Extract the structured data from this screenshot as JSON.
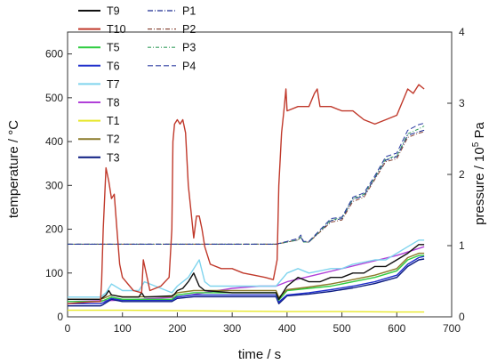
{
  "chart_data": {
    "type": "line",
    "xlabel": "time / s",
    "ylabel_left": "temperature / °C",
    "ylabel_right": "pressure / 10^5 Pa",
    "ylabel_right_base": "pressure / 10",
    "ylabel_right_exp": "5",
    "ylabel_right_unit": " Pa",
    "xlim": [
      0,
      700
    ],
    "ylim_left": [
      0,
      650
    ],
    "ylim_right": [
      0,
      4
    ],
    "x_ticks": [
      0,
      100,
      200,
      300,
      400,
      500,
      600,
      700
    ],
    "y_left_ticks": [
      0,
      100,
      200,
      300,
      400,
      500,
      600
    ],
    "y_right_ticks": [
      0,
      1,
      2,
      3,
      4
    ],
    "grid": false,
    "legend_left": [
      "T9",
      "T10",
      "T5",
      "T6",
      "T7",
      "T8",
      "T1",
      "T2",
      "T3"
    ],
    "legend_right": [
      "P1",
      "P2",
      "P3",
      "P4"
    ],
    "series": [
      {
        "name": "T10",
        "color": "#c0392b",
        "axis": "left",
        "x": [
          0,
          20,
          40,
          60,
          62,
          65,
          70,
          75,
          80,
          85,
          90,
          95,
          100,
          120,
          135,
          138,
          150,
          170,
          185,
          190,
          192,
          195,
          200,
          205,
          210,
          215,
          220,
          225,
          230,
          235,
          240,
          245,
          250,
          260,
          280,
          300,
          320,
          340,
          360,
          375,
          382,
          385,
          390,
          395,
          398,
          400,
          420,
          440,
          450,
          455,
          460,
          480,
          500,
          520,
          540,
          560,
          580,
          600,
          620,
          630,
          640,
          650
        ],
        "y": [
          30,
          32,
          34,
          35,
          80,
          200,
          340,
          310,
          270,
          280,
          200,
          120,
          90,
          60,
          55,
          130,
          60,
          70,
          90,
          200,
          400,
          440,
          450,
          440,
          450,
          420,
          300,
          240,
          180,
          230,
          230,
          200,
          160,
          120,
          110,
          110,
          100,
          95,
          90,
          85,
          130,
          300,
          420,
          480,
          520,
          470,
          480,
          480,
          510,
          520,
          480,
          480,
          470,
          470,
          450,
          440,
          450,
          460,
          520,
          510,
          530,
          520
        ]
      },
      {
        "name": "T9",
        "color": "#111111",
        "axis": "left",
        "x": [
          0,
          60,
          62,
          70,
          75,
          80,
          100,
          130,
          135,
          140,
          190,
          195,
          200,
          210,
          220,
          230,
          240,
          250,
          300,
          380,
          385,
          400,
          420,
          440,
          460,
          480,
          500,
          520,
          540,
          560,
          580,
          600,
          620,
          640,
          650
        ],
        "y": [
          40,
          40,
          42,
          50,
          60,
          50,
          45,
          45,
          55,
          45,
          48,
          52,
          60,
          65,
          80,
          100,
          70,
          60,
          55,
          55,
          40,
          70,
          90,
          80,
          80,
          90,
          90,
          100,
          100,
          115,
          115,
          130,
          145,
          165,
          165
        ]
      },
      {
        "name": "T5",
        "color": "#2ecc40",
        "axis": "left",
        "x": [
          0,
          60,
          65,
          80,
          100,
          140,
          190,
          200,
          230,
          250,
          300,
          380,
          385,
          400,
          440,
          480,
          520,
          560,
          600,
          620,
          640,
          650
        ],
        "y": [
          35,
          35,
          37,
          45,
          40,
          40,
          40,
          50,
          55,
          55,
          55,
          55,
          38,
          60,
          65,
          70,
          80,
          90,
          105,
          130,
          140,
          140
        ]
      },
      {
        "name": "T6",
        "color": "#1f2ecc",
        "axis": "left",
        "x": [
          0,
          60,
          65,
          80,
          100,
          140,
          190,
          200,
          230,
          250,
          300,
          380,
          385,
          400,
          440,
          480,
          520,
          560,
          600,
          620,
          640,
          650
        ],
        "y": [
          30,
          30,
          32,
          42,
          38,
          38,
          38,
          46,
          50,
          50,
          50,
          50,
          34,
          50,
          55,
          62,
          70,
          80,
          95,
          120,
          135,
          138
        ]
      },
      {
        "name": "T7",
        "color": "#7fd4ee",
        "axis": "left",
        "x": [
          0,
          60,
          70,
          80,
          100,
          130,
          140,
          190,
          200,
          220,
          240,
          250,
          260,
          300,
          380,
          400,
          420,
          440,
          460,
          480,
          500,
          520,
          540,
          560,
          580,
          600,
          620,
          640,
          650
        ],
        "y": [
          45,
          45,
          55,
          75,
          60,
          60,
          80,
          55,
          70,
          90,
          130,
          80,
          70,
          70,
          70,
          100,
          110,
          100,
          105,
          110,
          110,
          120,
          125,
          130,
          130,
          145,
          160,
          175,
          175
        ]
      },
      {
        "name": "T8",
        "color": "#b040d8",
        "axis": "left",
        "x": [
          0,
          100,
          200,
          300,
          350,
          380,
          400,
          450,
          500,
          550,
          600,
          650
        ],
        "y": [
          35,
          38,
          45,
          65,
          70,
          70,
          80,
          95,
          110,
          125,
          140,
          160
        ]
      },
      {
        "name": "T1",
        "color": "#e8e82a",
        "axis": "left",
        "x": [
          0,
          100,
          200,
          300,
          400,
          500,
          600,
          650
        ],
        "y": [
          15,
          15,
          14,
          13,
          12,
          12,
          11,
          11
        ]
      },
      {
        "name": "T2",
        "color": "#8b7a2a",
        "axis": "left",
        "x": [
          0,
          60,
          65,
          80,
          100,
          140,
          190,
          200,
          230,
          250,
          300,
          380,
          385,
          400,
          440,
          480,
          520,
          560,
          600,
          620,
          640,
          650
        ],
        "y": [
          40,
          40,
          42,
          50,
          46,
          46,
          46,
          55,
          60,
          60,
          60,
          60,
          44,
          62,
          68,
          75,
          85,
          95,
          110,
          135,
          145,
          145
        ]
      },
      {
        "name": "T3",
        "color": "#0a1a80",
        "axis": "left",
        "x": [
          0,
          60,
          65,
          80,
          100,
          140,
          190,
          200,
          230,
          250,
          300,
          380,
          385,
          400,
          440,
          480,
          520,
          560,
          600,
          620,
          640,
          650
        ],
        "y": [
          25,
          25,
          28,
          40,
          35,
          35,
          35,
          42,
          46,
          46,
          46,
          46,
          30,
          48,
          52,
          58,
          66,
          76,
          90,
          115,
          130,
          132
        ]
      },
      {
        "name": "P1",
        "color": "#1a2a90",
        "axis": "right",
        "x": [
          0,
          200,
          380,
          400,
          420,
          425,
          430,
          440,
          480,
          500,
          520,
          540,
          560,
          580,
          600,
          620,
          640,
          650
        ],
        "y": [
          1.02,
          1.02,
          1.02,
          1.05,
          1.08,
          1.12,
          1.05,
          1.05,
          1.35,
          1.38,
          1.65,
          1.7,
          1.95,
          2.2,
          2.25,
          2.55,
          2.6,
          2.62
        ]
      },
      {
        "name": "P2",
        "color": "#8b4a3a",
        "axis": "right",
        "x": [
          0,
          200,
          380,
          400,
          420,
          425,
          430,
          440,
          480,
          500,
          520,
          540,
          560,
          580,
          600,
          620,
          640,
          650
        ],
        "y": [
          1.02,
          1.02,
          1.02,
          1.05,
          1.08,
          1.12,
          1.05,
          1.05,
          1.33,
          1.36,
          1.62,
          1.68,
          1.93,
          2.18,
          2.22,
          2.52,
          2.58,
          2.6
        ]
      },
      {
        "name": "P3",
        "color": "#3aa060",
        "axis": "right",
        "x": [
          0,
          200,
          380,
          400,
          420,
          425,
          430,
          440,
          480,
          500,
          520,
          540,
          560,
          580,
          600,
          620,
          640,
          650
        ],
        "y": [
          1.02,
          1.02,
          1.02,
          1.05,
          1.08,
          1.12,
          1.05,
          1.05,
          1.36,
          1.39,
          1.66,
          1.72,
          1.96,
          2.22,
          2.26,
          2.57,
          2.64,
          2.68
        ]
      },
      {
        "name": "P4",
        "color": "#2a3aa0",
        "axis": "right",
        "x": [
          0,
          200,
          380,
          400,
          420,
          425,
          430,
          440,
          480,
          500,
          520,
          540,
          560,
          580,
          600,
          620,
          640,
          650
        ],
        "y": [
          1.02,
          1.02,
          1.02,
          1.06,
          1.1,
          1.15,
          1.06,
          1.06,
          1.38,
          1.4,
          1.68,
          1.74,
          1.98,
          2.25,
          2.3,
          2.62,
          2.7,
          2.72
        ]
      }
    ]
  }
}
